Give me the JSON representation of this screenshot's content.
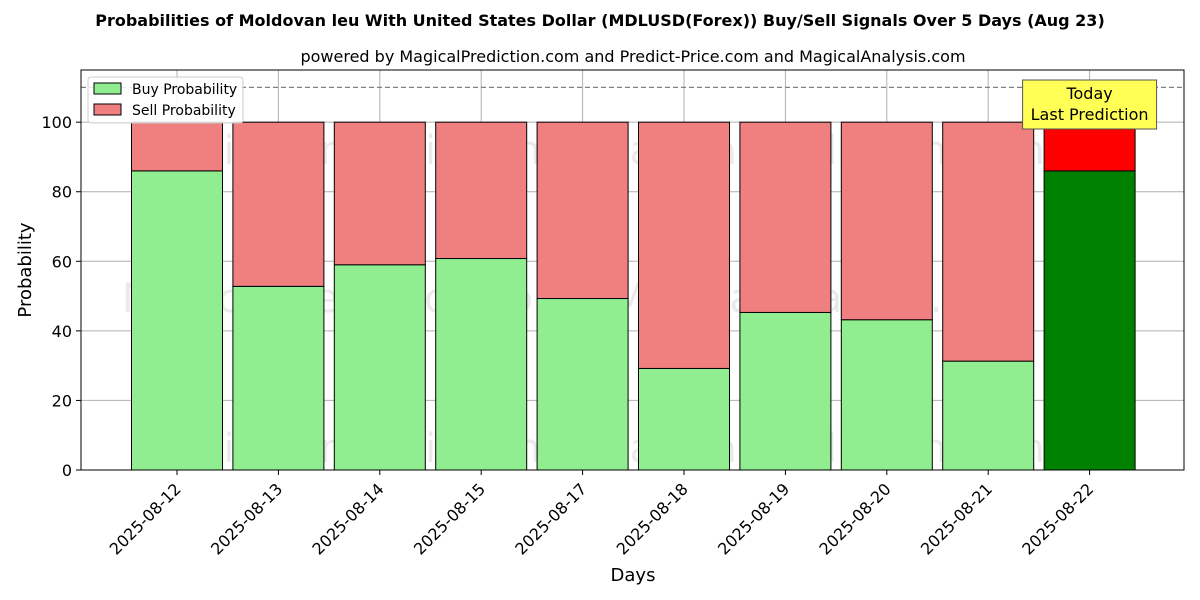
{
  "chart_data": {
    "type": "bar",
    "title": "Probabilities of Moldovan leu With United States Dollar (MDLUSD(Forex)) Buy/Sell Signals Over 5 Days (Aug 23)",
    "subtitle": "powered by MagicalPrediction.com and Predict-Price.com and MagicalAnalysis.com",
    "xlabel": "Days",
    "ylabel": "Probability",
    "ylim": [
      0,
      115
    ],
    "yticks": [
      "0",
      "20",
      "40",
      "60",
      "80",
      "100"
    ],
    "categories": [
      "2025-08-12",
      "2025-08-13",
      "2025-08-14",
      "2025-08-15",
      "2025-08-17",
      "2025-08-18",
      "2025-08-19",
      "2025-08-20",
      "2025-08-21",
      "2025-08-22"
    ],
    "series": [
      {
        "name": "Buy Probability",
        "values": [
          86,
          52.8,
          59,
          60.8,
          49.3,
          29.2,
          45.3,
          43.2,
          31.3,
          86
        ]
      },
      {
        "name": "Sell Probability",
        "values": [
          14,
          47.2,
          41,
          39.2,
          50.7,
          70.8,
          54.7,
          56.8,
          68.7,
          14
        ]
      }
    ],
    "stacked": true,
    "reference_line": 110,
    "grid": true,
    "legend_position": "top-left",
    "annotation": {
      "lines": [
        "Today",
        "Last Prediction"
      ],
      "category": "2025-08-22"
    },
    "watermarks": [
      "MagicalAnalysis.com",
      "MagicalPrediction.com"
    ],
    "colors": {
      "buy": "#90EE90",
      "sell": "#F08080",
      "buy_highlight": "#008000",
      "sell_highlight": "#FF0000",
      "annotation_bg": "#FFFF55",
      "reference_line": "#808080"
    }
  }
}
